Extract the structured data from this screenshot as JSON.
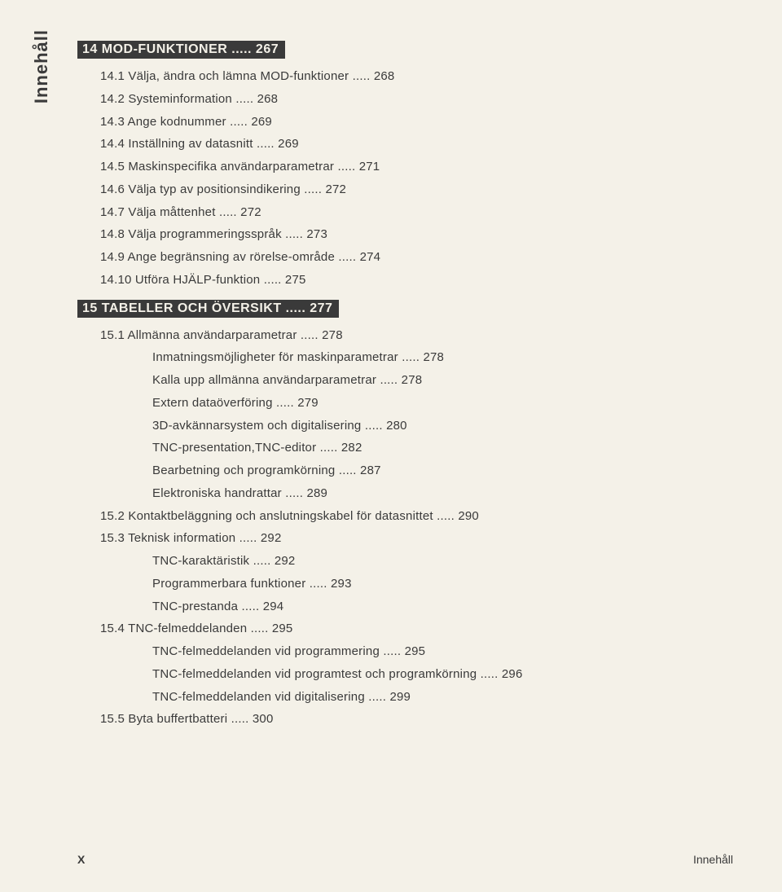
{
  "sideLabel": "Innehåll",
  "sections": [
    {
      "number": "14",
      "title": "MOD-FUNKTIONER",
      "page": "267",
      "items": [
        {
          "t": "14.1 Välja, ändra och lämna MOD-funktioner",
          "p": "268",
          "lvl": 2
        },
        {
          "t": "14.2 Systeminformation",
          "p": "268",
          "lvl": 2
        },
        {
          "t": "14.3 Ange kodnummer",
          "p": "269",
          "lvl": 2
        },
        {
          "t": "14.4 Inställning av datasnitt",
          "p": "269",
          "lvl": 2
        },
        {
          "t": "14.5 Maskinspecifika användarparametrar",
          "p": "271",
          "lvl": 2
        },
        {
          "t": "14.6 Välja typ av positionsindikering",
          "p": "272",
          "lvl": 2
        },
        {
          "t": "14.7 Välja måttenhet",
          "p": "272",
          "lvl": 2
        },
        {
          "t": "14.8 Välja programmeringsspråk",
          "p": "273",
          "lvl": 2
        },
        {
          "t": "14.9 Ange begränsning av rörelse-område",
          "p": "274",
          "lvl": 2
        },
        {
          "t": "14.10 Utföra HJÄLP-funktion",
          "p": "275",
          "lvl": 2
        }
      ]
    },
    {
      "number": "15",
      "title": "TABELLER OCH ÖVERSIKT",
      "page": "277",
      "items": [
        {
          "t": "15.1 Allmänna användarparametrar",
          "p": "278",
          "lvl": 2
        },
        {
          "t": "Inmatningsmöjligheter för maskinparametrar",
          "p": "278",
          "lvl": 3
        },
        {
          "t": "Kalla upp allmänna användarparametrar",
          "p": "278",
          "lvl": 3
        },
        {
          "t": "Extern dataöverföring",
          "p": "279",
          "lvl": 3
        },
        {
          "t": "3D-avkännarsystem och digitalisering",
          "p": "280",
          "lvl": 3
        },
        {
          "t": "TNC-presentation,TNC-editor",
          "p": "282",
          "lvl": 3
        },
        {
          "t": "Bearbetning och programkörning",
          "p": "287",
          "lvl": 3
        },
        {
          "t": "Elektroniska handrattar",
          "p": "289",
          "lvl": 3
        },
        {
          "t": "15.2 Kontaktbeläggning och anslutningskabel för datasnittet",
          "p": "290",
          "lvl": 2
        },
        {
          "t": "15.3 Teknisk information",
          "p": "292",
          "lvl": 2
        },
        {
          "t": "TNC-karaktäristik",
          "p": "292",
          "lvl": 3
        },
        {
          "t": "Programmerbara funktioner",
          "p": "293",
          "lvl": 3
        },
        {
          "t": "TNC-prestanda",
          "p": "294",
          "lvl": 3
        },
        {
          "t": "15.4 TNC-felmeddelanden",
          "p": "295",
          "lvl": 2
        },
        {
          "t": "TNC-felmeddelanden vid programmering",
          "p": "295",
          "lvl": 3
        },
        {
          "t": "TNC-felmeddelanden vid programtest och programkörning",
          "p": "296",
          "lvl": 3
        },
        {
          "t": "TNC-felmeddelanden vid digitalisering",
          "p": "299",
          "lvl": 3
        },
        {
          "t": "15.5 Byta buffertbatteri",
          "p": "300",
          "lvl": 2
        }
      ]
    }
  ],
  "footer": {
    "pageNum": "X",
    "label": "Innehåll"
  }
}
